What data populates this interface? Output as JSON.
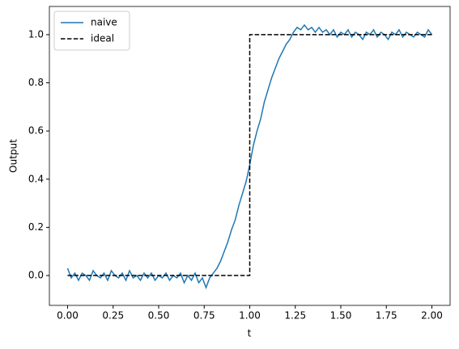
{
  "chart_data": {
    "type": "line",
    "xlabel": "t",
    "ylabel": "Output",
    "xlim": [
      -0.1,
      2.1
    ],
    "ylim": [
      -0.124,
      1.117
    ],
    "xticks": [
      {
        "value": 0,
        "label": "0.00"
      },
      {
        "value": 0.25,
        "label": "0.25"
      },
      {
        "value": 0.5,
        "label": "0.50"
      },
      {
        "value": 0.75,
        "label": "0.75"
      },
      {
        "value": 1,
        "label": "1.00"
      },
      {
        "value": 1.25,
        "label": "1.25"
      },
      {
        "value": 1.5,
        "label": "1.50"
      },
      {
        "value": 1.75,
        "label": "1.75"
      },
      {
        "value": 2,
        "label": "2.00"
      }
    ],
    "yticks": [
      {
        "value": 0,
        "label": "0.0"
      },
      {
        "value": 0.2,
        "label": "0.2"
      },
      {
        "value": 0.4,
        "label": "0.4"
      },
      {
        "value": 0.6,
        "label": "0.6"
      },
      {
        "value": 0.8,
        "label": "0.8"
      },
      {
        "value": 1,
        "label": "1.0"
      }
    ],
    "grid": false,
    "legend": "upper-left",
    "series": [
      {
        "name": "naive",
        "color": "#1f77b4",
        "dash": "solid",
        "x": [
          0,
          0.02,
          0.04,
          0.06,
          0.08,
          0.1,
          0.12,
          0.14,
          0.16,
          0.18,
          0.2,
          0.22,
          0.24,
          0.26,
          0.28,
          0.3,
          0.32,
          0.34,
          0.36,
          0.38,
          0.4,
          0.42,
          0.44,
          0.46,
          0.48,
          0.5,
          0.52,
          0.54,
          0.56,
          0.58,
          0.6,
          0.62,
          0.64,
          0.66,
          0.68,
          0.7,
          0.72,
          0.74,
          0.76,
          0.78,
          0.8,
          0.82,
          0.84,
          0.86,
          0.88,
          0.9,
          0.92,
          0.94,
          0.96,
          0.98,
          1,
          1.02,
          1.04,
          1.06,
          1.08,
          1.1,
          1.12,
          1.14,
          1.16,
          1.18,
          1.2,
          1.22,
          1.24,
          1.26,
          1.28,
          1.3,
          1.32,
          1.34,
          1.36,
          1.38,
          1.4,
          1.42,
          1.44,
          1.46,
          1.48,
          1.5,
          1.52,
          1.54,
          1.56,
          1.58,
          1.6,
          1.62,
          1.64,
          1.66,
          1.68,
          1.7,
          1.72,
          1.74,
          1.76,
          1.78,
          1.8,
          1.82,
          1.84,
          1.86,
          1.88,
          1.9,
          1.92,
          1.94,
          1.96,
          1.98,
          2
        ],
        "values": [
          0.03,
          -0.01,
          0.01,
          -0.02,
          0.01,
          0,
          -0.02,
          0.02,
          0,
          -0.01,
          0.01,
          -0.02,
          0.02,
          0,
          -0.01,
          0.01,
          -0.02,
          0.02,
          -0.01,
          0,
          -0.02,
          0.01,
          -0.01,
          0.01,
          -0.02,
          0,
          -0.01,
          0.01,
          -0.02,
          0,
          -0.01,
          0.01,
          -0.03,
          0,
          -0.02,
          0.01,
          -0.03,
          -0.01,
          -0.05,
          -0.01,
          0.01,
          0.03,
          0.06,
          0.1,
          0.14,
          0.19,
          0.23,
          0.29,
          0.34,
          0.39,
          0.46,
          0.54,
          0.6,
          0.65,
          0.72,
          0.77,
          0.82,
          0.86,
          0.9,
          0.93,
          0.96,
          0.98,
          1.01,
          1.03,
          1.02,
          1.04,
          1.02,
          1.03,
          1.01,
          1.03,
          1.01,
          1.02,
          1,
          1.02,
          0.99,
          1.01,
          1,
          1.02,
          0.99,
          1.01,
          1,
          0.98,
          1.01,
          1,
          1.02,
          0.99,
          1.01,
          1,
          0.98,
          1.01,
          1,
          1.02,
          0.99,
          1.01,
          1,
          0.99,
          1.01,
          1,
          0.99,
          1.02,
          1
        ]
      },
      {
        "name": "ideal",
        "color": "#000000",
        "dash": "dashed",
        "x": [
          0,
          1,
          1,
          2
        ],
        "values": [
          0,
          0,
          1,
          1
        ]
      }
    ]
  }
}
